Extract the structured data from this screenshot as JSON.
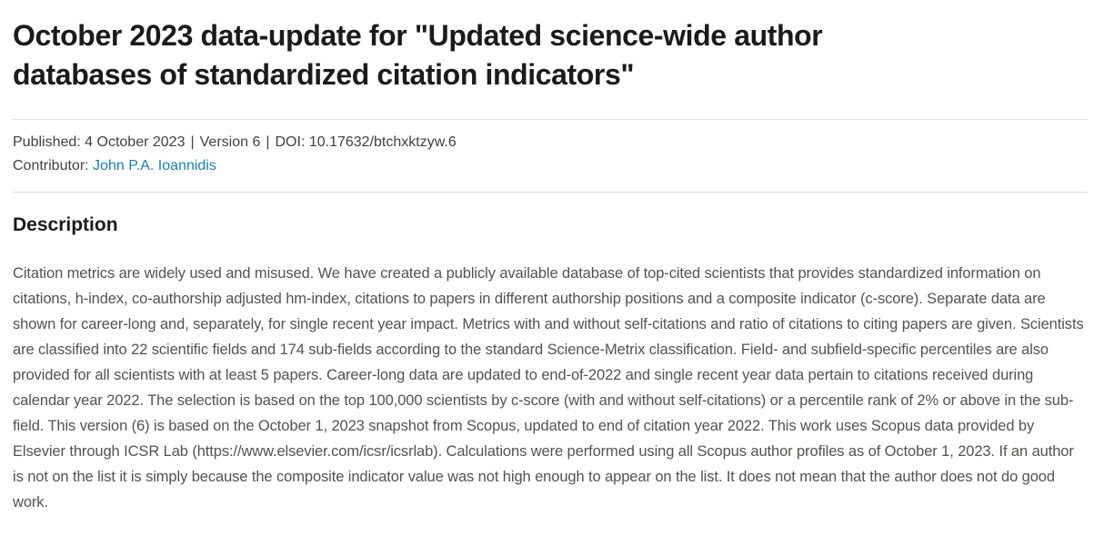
{
  "title": {
    "full": "October 2023 data-update for \"Updated science-wide author databases of standardized citation indicators\"",
    "line1": "October 2023 data-update for \"Updated science-wide author",
    "line2": "databases of standardized citation indicators\""
  },
  "meta": {
    "published": "Published: 4 October 2023",
    "version": "Version 6",
    "doi": "DOI: 10.17632/btchxktzyw.6",
    "separator": "|",
    "contributor_label": "Contributor:",
    "contributor_name": "John P.A. Ioannidis"
  },
  "description": {
    "heading": "Description",
    "body": "Citation metrics are widely used and misused. We have created a publicly available database of top-cited scientists that provides standardized information on citations, h-index, co-authorship adjusted hm-index, citations to papers in different authorship positions and a composite indicator (c-score). Separate data are shown for career-long and, separately, for single recent year impact. Metrics with and without self-citations and ratio of citations to citing papers are given. Scientists are classified into 22 scientific fields and 174 sub-fields according to the standard Science-Metrix classification. Field- and subfield-specific percentiles are also provided for all scientists with at least 5 papers. Career-long data are updated to end-of-2022 and single recent year data pertain to citations received during calendar year 2022. The selection is based on the top 100,000 scientists by c-score (with and without self-citations) or a percentile rank of 2% or above in the sub-field. This version (6) is based on the October 1, 2023 snapshot from Scopus, updated to end of citation year 2022. This work uses Scopus data provided by Elsevier through ICSR Lab (https://www.elsevier.com/icsr/icsrlab). Calculations were performed using all Scopus author profiles as of October 1, 2023. If an author is not on the list it is simply because the composite indicator value was not high enough to appear on the list. It does not mean that the author does not do good work."
  },
  "colors": {
    "link": "#1b7fba",
    "title_text": "#1b1b1b",
    "body_text": "#56524d",
    "meta_text": "#414141",
    "divider": "#dcdcdc"
  }
}
